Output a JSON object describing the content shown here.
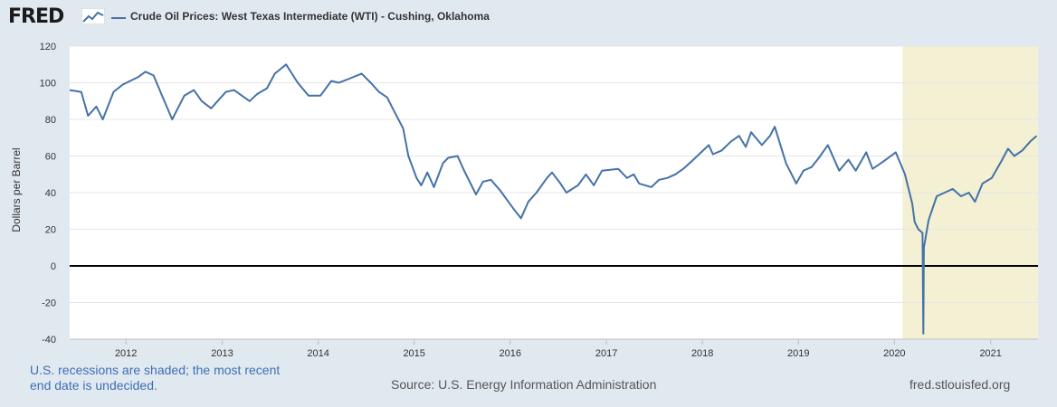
{
  "header": {
    "logo_text": "FRED",
    "title": "Crude Oil Prices: West Texas Intermediate (WTI) - Cushing, Oklahoma"
  },
  "footer": {
    "recession_note": "U.S. recessions are shaded; the most recent end date is undecided.",
    "source": "Source: U.S. Energy Information Administration",
    "site": "fred.stlouisfed.org"
  },
  "colors": {
    "series": "#4572a7",
    "recession": "#f3f0d3",
    "background": "#e1e9f0"
  },
  "chart_data": {
    "type": "line",
    "title": "Crude Oil Prices: West Texas Intermediate (WTI) - Cushing, Oklahoma",
    "ylabel": "Dollars per Barrel",
    "xlabel": "",
    "ylim": [
      -40,
      120
    ],
    "xlim": [
      "2011-06-01",
      "2021-06-30"
    ],
    "y_ticks": [
      120,
      100,
      80,
      60,
      40,
      20,
      0,
      -20,
      -40
    ],
    "x_ticks": [
      "2012",
      "2013",
      "2014",
      "2015",
      "2016",
      "2017",
      "2018",
      "2019",
      "2020",
      "2021"
    ],
    "grid": true,
    "zero_line": true,
    "recessions": [
      {
        "start": "2020-02-01",
        "end": "2021-06-30"
      }
    ],
    "series": [
      {
        "name": "Crude Oil Prices: West Texas Intermediate (WTI) - Cushing, Oklahoma",
        "x": [
          "2011-06-01",
          "2011-07-15",
          "2011-08-10",
          "2011-09-10",
          "2011-10-05",
          "2011-11-15",
          "2011-12-20",
          "2012-02-15",
          "2012-03-15",
          "2012-04-15",
          "2012-05-20",
          "2012-06-25",
          "2012-08-10",
          "2012-09-15",
          "2012-10-15",
          "2012-11-20",
          "2013-01-15",
          "2013-02-15",
          "2013-04-15",
          "2013-05-15",
          "2013-06-20",
          "2013-07-20",
          "2013-09-01",
          "2013-10-15",
          "2013-11-25",
          "2014-01-10",
          "2014-02-20",
          "2014-03-20",
          "2014-04-25",
          "2014-06-15",
          "2014-07-20",
          "2014-08-20",
          "2014-09-20",
          "2014-10-15",
          "2014-11-20",
          "2014-12-10",
          "2015-01-10",
          "2015-01-28",
          "2015-02-20",
          "2015-03-17",
          "2015-04-20",
          "2015-05-10",
          "2015-06-15",
          "2015-07-10",
          "2015-08-24",
          "2015-09-20",
          "2015-10-20",
          "2015-11-25",
          "2015-12-20",
          "2016-01-20",
          "2016-02-11",
          "2016-03-10",
          "2016-04-10",
          "2016-05-20",
          "2016-06-08",
          "2016-07-10",
          "2016-08-02",
          "2016-09-15",
          "2016-10-15",
          "2016-11-14",
          "2016-12-15",
          "2017-02-15",
          "2017-03-20",
          "2017-04-15",
          "2017-05-05",
          "2017-06-21",
          "2017-07-20",
          "2017-08-20",
          "2017-09-20",
          "2017-10-20",
          "2017-11-20",
          "2018-01-25",
          "2018-02-10",
          "2018-03-15",
          "2018-04-20",
          "2018-05-20",
          "2018-06-15",
          "2018-07-05",
          "2018-08-15",
          "2018-09-15",
          "2018-10-03",
          "2018-11-15",
          "2018-12-24",
          "2019-01-20",
          "2019-02-20",
          "2019-03-20",
          "2019-04-23",
          "2019-06-05",
          "2019-07-10",
          "2019-08-07",
          "2019-09-16",
          "2019-10-10",
          "2019-11-20",
          "2020-01-06",
          "2020-02-10",
          "2020-03-09",
          "2020-03-18",
          "2020-04-01",
          "2020-04-17",
          "2020-04-20",
          "2020-04-22",
          "2020-05-10",
          "2020-06-10",
          "2020-07-10",
          "2020-08-10",
          "2020-09-10",
          "2020-10-10",
          "2020-11-02",
          "2020-12-01",
          "2021-01-05",
          "2021-02-10",
          "2021-03-08",
          "2021-04-01",
          "2021-05-01",
          "2021-06-01",
          "2021-06-25"
        ],
        "values": [
          96,
          95,
          82,
          87,
          80,
          95,
          99,
          103,
          106,
          104,
          92,
          80,
          93,
          96,
          90,
          86,
          95,
          96,
          90,
          94,
          97,
          105,
          110,
          100,
          93,
          93,
          101,
          100,
          102,
          105,
          100,
          95,
          92,
          85,
          75,
          60,
          48,
          44,
          51,
          43,
          56,
          59,
          60,
          52,
          39,
          46,
          47,
          41,
          36,
          30,
          26,
          35,
          40,
          48,
          51,
          45,
          40,
          44,
          50,
          44,
          52,
          53,
          48,
          50,
          45,
          43,
          47,
          48,
          50,
          53,
          57,
          66,
          61,
          63,
          68,
          71,
          65,
          73,
          66,
          71,
          76,
          56,
          45,
          52,
          54,
          59,
          66,
          52,
          58,
          52,
          62,
          53,
          57,
          62,
          50,
          34,
          24,
          20,
          18,
          -37,
          10,
          25,
          38,
          40,
          42,
          38,
          40,
          35,
          45,
          48,
          57,
          64,
          60,
          63,
          68,
          71
        ]
      }
    ]
  }
}
